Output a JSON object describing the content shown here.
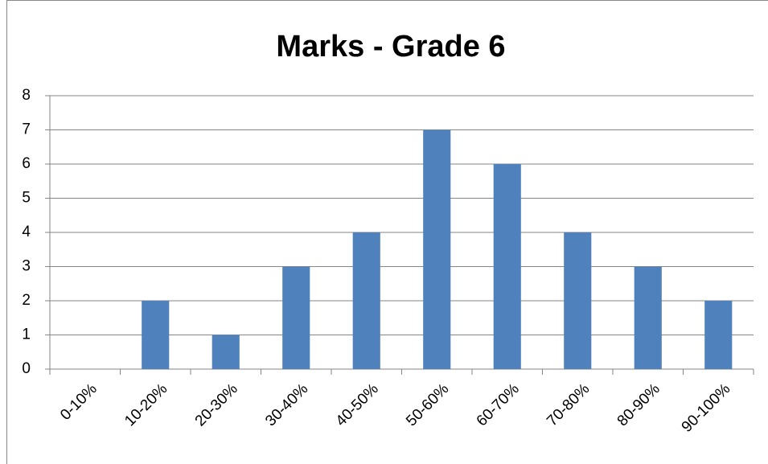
{
  "chart_data": {
    "type": "bar",
    "title": "Marks - Grade 6",
    "categories": [
      "0-10%",
      "10-20%",
      "20-30%",
      "30-40%",
      "40-50%",
      "50-60%",
      "60-70%",
      "70-80%",
      "80-90%",
      "90-100%"
    ],
    "values": [
      0,
      2,
      1,
      3,
      4,
      7,
      6,
      4,
      3,
      2
    ],
    "color": "#4f81bd",
    "ylim": [
      0,
      8
    ],
    "yticks": [
      0,
      1,
      2,
      3,
      4,
      5,
      6,
      7,
      8
    ],
    "grid": true
  }
}
